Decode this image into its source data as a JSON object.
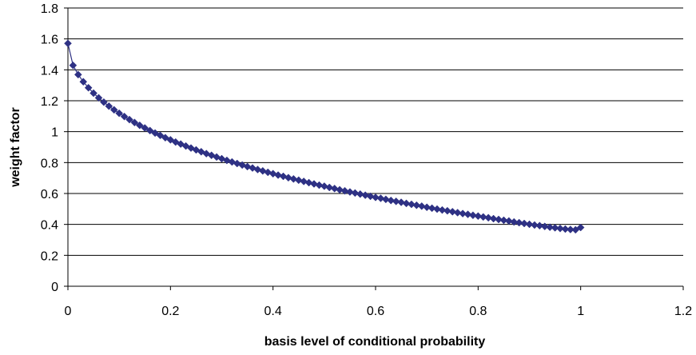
{
  "chart_data": {
    "type": "scatter",
    "title": "",
    "xlabel": "basis level of conditional probability",
    "ylabel": "weight factor",
    "xlim": [
      0,
      1.2
    ],
    "ylim": [
      0,
      1.8
    ],
    "x_ticks": [
      "0",
      "0.2",
      "0.4",
      "0.6",
      "0.8",
      "1",
      "1.2"
    ],
    "y_ticks": [
      "0",
      "0.2",
      "0.4",
      "0.6",
      "0.8",
      "1",
      "1.2",
      "1.4",
      "1.6",
      "1.8"
    ],
    "grid": "horizontal",
    "legend": "none",
    "marker": "diamond",
    "connected": true,
    "series_color": "#2e3184",
    "series": [
      {
        "x": [
          0,
          0.01,
          0.02,
          0.03,
          0.04,
          0.05,
          0.06,
          0.07,
          0.08,
          0.09,
          0.1,
          0.11,
          0.12,
          0.13,
          0.14,
          0.15,
          0.16,
          0.17,
          0.18,
          0.19,
          0.2,
          0.21,
          0.22,
          0.23,
          0.24,
          0.25,
          0.26,
          0.27,
          0.28,
          0.29,
          0.3,
          0.31,
          0.32,
          0.33,
          0.34,
          0.35,
          0.36,
          0.37,
          0.38,
          0.39,
          0.4,
          0.41,
          0.42,
          0.43,
          0.44,
          0.45,
          0.46,
          0.47,
          0.48,
          0.49,
          0.5,
          0.51,
          0.52,
          0.53,
          0.54,
          0.55,
          0.56,
          0.57,
          0.58,
          0.59,
          0.6,
          0.61,
          0.62,
          0.63,
          0.64,
          0.65,
          0.66,
          0.67,
          0.68,
          0.69,
          0.7,
          0.71,
          0.72,
          0.73,
          0.74,
          0.75,
          0.76,
          0.77,
          0.78,
          0.79,
          0.8,
          0.81,
          0.82,
          0.83,
          0.84,
          0.85,
          0.86,
          0.87,
          0.88,
          0.89,
          0.9,
          0.91,
          0.92,
          0.93,
          0.94,
          0.95,
          0.96,
          0.97,
          0.98,
          0.99,
          1
        ],
        "y": [
          1.571,
          1.429,
          1.369,
          1.323,
          1.284,
          1.249,
          1.219,
          1.191,
          1.165,
          1.141,
          1.119,
          1.098,
          1.078,
          1.059,
          1.041,
          1.024,
          1.007,
          0.991,
          0.976,
          0.961,
          0.947,
          0.933,
          0.92,
          0.907,
          0.894,
          0.882,
          0.87,
          0.858,
          0.847,
          0.836,
          0.825,
          0.814,
          0.804,
          0.794,
          0.784,
          0.774,
          0.765,
          0.755,
          0.746,
          0.737,
          0.728,
          0.719,
          0.711,
          0.702,
          0.694,
          0.686,
          0.678,
          0.67,
          0.662,
          0.654,
          0.647,
          0.639,
          0.632,
          0.624,
          0.617,
          0.61,
          0.603,
          0.596,
          0.589,
          0.582,
          0.575,
          0.569,
          0.562,
          0.555,
          0.549,
          0.543,
          0.536,
          0.53,
          0.524,
          0.518,
          0.511,
          0.505,
          0.499,
          0.493,
          0.488,
          0.482,
          0.476,
          0.47,
          0.465,
          0.459,
          0.454,
          0.448,
          0.443,
          0.437,
          0.432,
          0.427,
          0.422,
          0.416,
          0.411,
          0.406,
          0.401,
          0.396,
          0.392,
          0.387,
          0.382,
          0.378,
          0.374,
          0.37,
          0.367,
          0.365,
          0.38
        ]
      }
    ]
  }
}
